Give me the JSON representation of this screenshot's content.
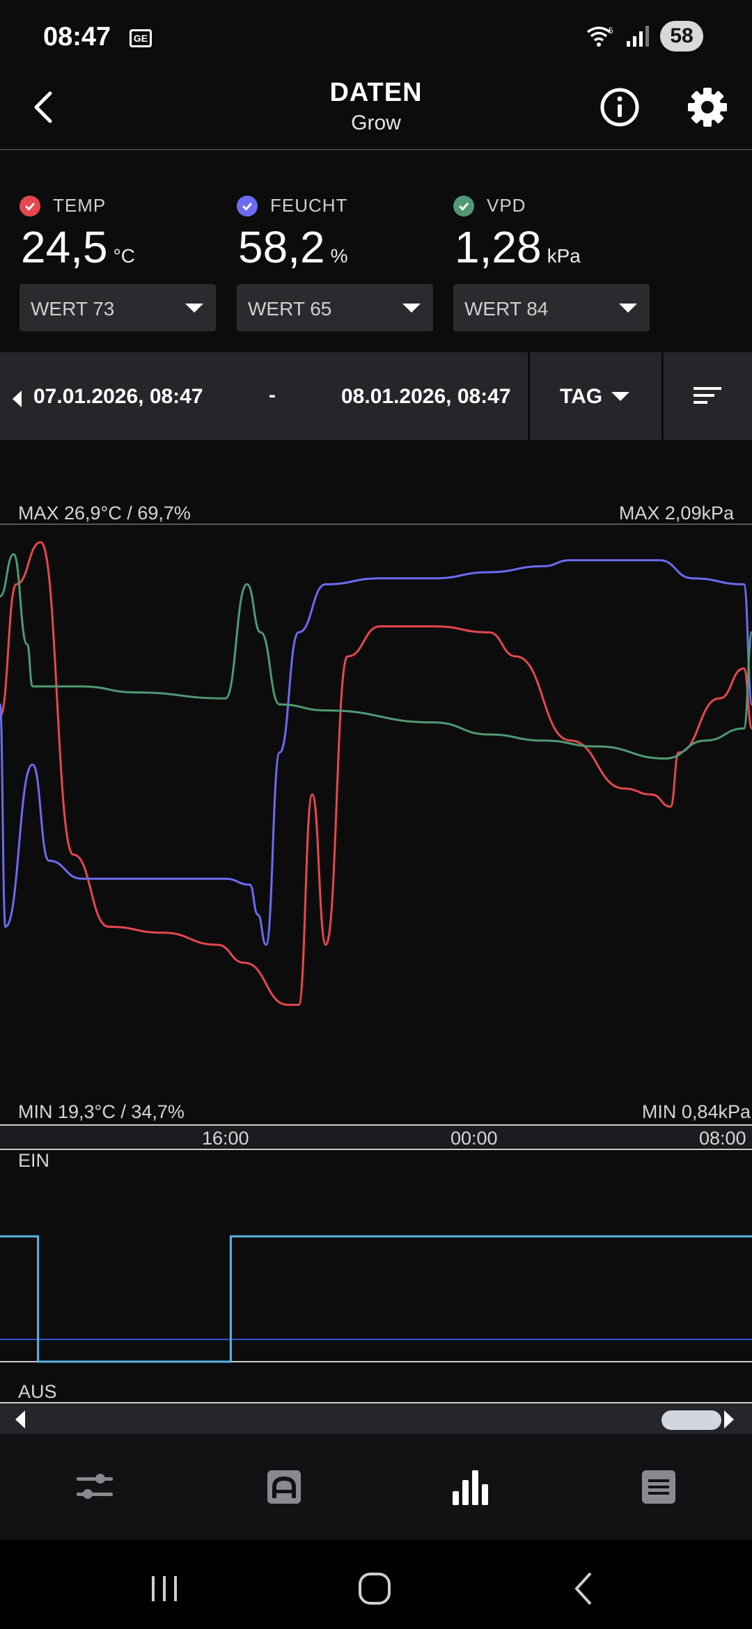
{
  "status_bar": {
    "time": "08:47",
    "carrier_icon_text": "GE",
    "battery": "58"
  },
  "header": {
    "title": "DATEN",
    "subtitle": "Grow"
  },
  "sensors": [
    {
      "label": "TEMP",
      "value": "24,5",
      "unit": "°C",
      "color": "#e5484d",
      "select": "WERT 73"
    },
    {
      "label": "FEUCHT",
      "value": "58,2",
      "unit": "%",
      "color": "#6b6cf0",
      "select": "WERT 65"
    },
    {
      "label": "VPD",
      "value": "1,28",
      "unit": "kPa",
      "color": "#4f9a72",
      "select": "WERT 84"
    }
  ],
  "range": {
    "start": "07.01.2026, 08:47",
    "separator": "-",
    "end": "08.01.2026, 08:47",
    "period": "TAG"
  },
  "chart": {
    "max_left": "MAX 26,9°C / 69,7%",
    "max_right": "MAX 2,09kPa",
    "min_left": "MIN 19,3°C / 34,7%",
    "min_right": "MIN 0,84kPa",
    "time_ticks": [
      "16:00",
      "00:00",
      "08:00"
    ],
    "on_label": "EIN",
    "off_label": "AUS",
    "colors": {
      "temp": "#e5484d",
      "humidity": "#6b6cf0",
      "vpd": "#4f9a72",
      "switch": "#5ab4e6",
      "switch_base": "#2f4fd6"
    }
  },
  "chart_data": {
    "type": "line",
    "x_range": [
      "07.01.2026, 08:47",
      "08.01.2026, 08:47"
    ],
    "x_ticks": [
      "16:00",
      "00:00",
      "08:00"
    ],
    "series": [
      {
        "name": "TEMP",
        "unit": "°C",
        "min": 19.3,
        "max": 26.9,
        "points": [
          [
            0,
            0.68
          ],
          [
            0.6,
            0.9
          ],
          [
            1.5,
            0.97
          ],
          [
            2.7,
            0.45
          ],
          [
            4,
            0.33
          ],
          [
            6,
            0.32
          ],
          [
            8,
            0.3
          ],
          [
            9,
            0.27
          ],
          [
            10.6,
            0.2
          ],
          [
            11,
            0.2
          ],
          [
            11.5,
            0.55
          ],
          [
            12,
            0.3
          ],
          [
            12.8,
            0.78
          ],
          [
            14,
            0.83
          ],
          [
            16,
            0.83
          ],
          [
            18,
            0.82
          ],
          [
            19,
            0.78
          ],
          [
            21,
            0.64
          ],
          [
            23,
            0.56
          ],
          [
            24,
            0.55
          ],
          [
            24.7,
            0.53
          ],
          [
            25,
            0.62
          ],
          [
            26.5,
            0.71
          ],
          [
            27.4,
            0.76
          ],
          [
            27.7,
            0.66
          ]
        ]
      },
      {
        "name": "FEUCHT",
        "unit": "%",
        "min": 34.7,
        "max": 69.7,
        "points": [
          [
            0,
            0.7
          ],
          [
            0.2,
            0.33
          ],
          [
            1.2,
            0.6
          ],
          [
            1.8,
            0.44
          ],
          [
            3,
            0.41
          ],
          [
            5,
            0.41
          ],
          [
            8.3,
            0.41
          ],
          [
            9.2,
            0.4
          ],
          [
            9.5,
            0.35
          ],
          [
            9.8,
            0.3
          ],
          [
            10.3,
            0.62
          ],
          [
            11,
            0.82
          ],
          [
            12,
            0.9
          ],
          [
            14,
            0.91
          ],
          [
            16,
            0.91
          ],
          [
            18,
            0.92
          ],
          [
            20,
            0.93
          ],
          [
            21,
            0.94
          ],
          [
            23,
            0.94
          ],
          [
            24.3,
            0.94
          ],
          [
            25.5,
            0.91
          ],
          [
            27.4,
            0.9
          ],
          [
            27.7,
            0.7
          ]
        ]
      },
      {
        "name": "VPD",
        "unit": "kPa",
        "min": 0.84,
        "max": 2.09,
        "points": [
          [
            0,
            0.88
          ],
          [
            0.5,
            0.95
          ],
          [
            1,
            0.8
          ],
          [
            1.2,
            0.73
          ],
          [
            2,
            0.73
          ],
          [
            3,
            0.73
          ],
          [
            5,
            0.72
          ],
          [
            8.3,
            0.71
          ],
          [
            9.1,
            0.9
          ],
          [
            9.6,
            0.82
          ],
          [
            10.3,
            0.7
          ],
          [
            12,
            0.69
          ],
          [
            16,
            0.67
          ],
          [
            18,
            0.65
          ],
          [
            20,
            0.64
          ],
          [
            22,
            0.63
          ],
          [
            24.5,
            0.61
          ],
          [
            26,
            0.64
          ],
          [
            27.4,
            0.66
          ],
          [
            27.7,
            0.82
          ]
        ]
      }
    ],
    "switch": {
      "on_label": "EIN",
      "off_label": "AUS",
      "segments": [
        [
          0,
          1
        ],
        [
          1.4,
          1
        ],
        [
          1.4,
          0
        ],
        [
          8.5,
          0
        ],
        [
          8.5,
          1
        ],
        [
          27.7,
          1
        ]
      ]
    }
  },
  "nav": {
    "items": [
      "sliders-icon",
      "car-seat-icon",
      "bar-chart-icon",
      "list-icon"
    ],
    "active": 2
  }
}
